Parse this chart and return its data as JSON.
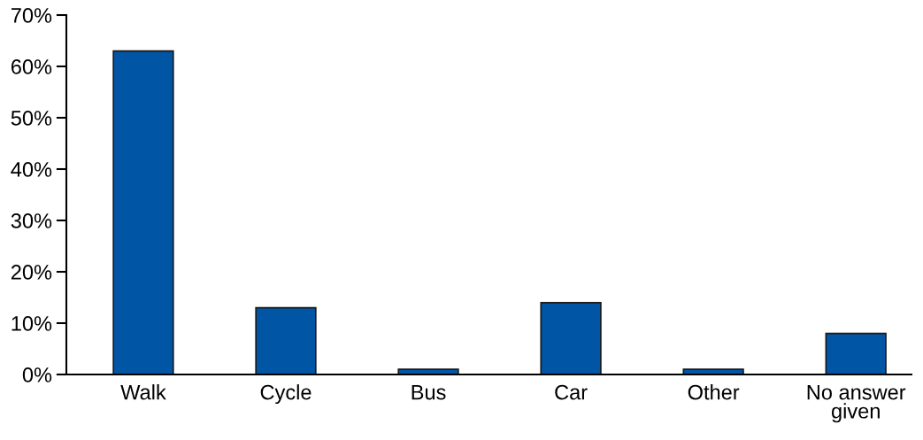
{
  "chart_data": {
    "type": "bar",
    "categories": [
      "Walk",
      "Cycle",
      "Bus",
      "Car",
      "Other",
      "No answer\ngiven"
    ],
    "values": [
      63,
      13,
      1,
      14,
      1,
      8
    ],
    "color": "#0055a5",
    "ylim": [
      0,
      70
    ],
    "yticks": [
      {
        "value": 0,
        "label": "0%"
      },
      {
        "value": 10,
        "label": "10%"
      },
      {
        "value": 20,
        "label": "20%"
      },
      {
        "value": 30,
        "label": "30%"
      },
      {
        "value": 40,
        "label": "40%"
      },
      {
        "value": 50,
        "label": "50%"
      },
      {
        "value": 60,
        "label": "60%"
      },
      {
        "value": 70,
        "label": "70%"
      }
    ],
    "grid": false,
    "legend": false
  }
}
